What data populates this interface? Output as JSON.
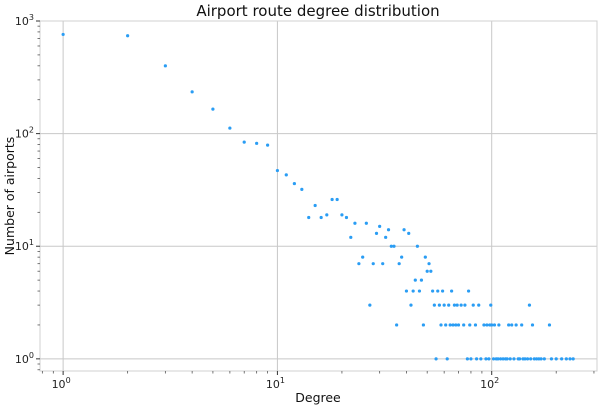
{
  "chart_data": {
    "type": "scatter",
    "title": "Airport route degree distribution",
    "xlabel": "Degree",
    "ylabel": "Number of airports",
    "xscale": "log",
    "yscale": "log",
    "xlim": [
      0.78,
      310
    ],
    "ylim": [
      0.78,
      1000
    ],
    "grid": true,
    "point_color": "#2a9df4",
    "x_ticks": [
      {
        "base": "10",
        "exp": "0",
        "value": 1
      },
      {
        "base": "10",
        "exp": "1",
        "value": 10
      },
      {
        "base": "10",
        "exp": "2",
        "value": 100
      }
    ],
    "y_ticks": [
      {
        "base": "10",
        "exp": "0",
        "value": 1
      },
      {
        "base": "10",
        "exp": "1",
        "value": 10
      },
      {
        "base": "10",
        "exp": "2",
        "value": 100
      },
      {
        "base": "10",
        "exp": "3",
        "value": 1000
      }
    ],
    "points": [
      [
        1,
        760
      ],
      [
        2,
        740
      ],
      [
        3,
        400
      ],
      [
        4,
        235
      ],
      [
        5,
        165
      ],
      [
        6,
        112
      ],
      [
        7,
        84
      ],
      [
        8,
        82
      ],
      [
        9,
        79
      ],
      [
        10,
        47
      ],
      [
        11,
        43
      ],
      [
        12,
        36
      ],
      [
        13,
        32
      ],
      [
        14,
        18
      ],
      [
        15,
        23
      ],
      [
        16,
        18
      ],
      [
        17,
        19
      ],
      [
        18,
        26
      ],
      [
        19,
        26
      ],
      [
        20,
        19
      ],
      [
        21,
        18
      ],
      [
        22,
        12
      ],
      [
        23,
        16
      ],
      [
        24,
        7
      ],
      [
        25,
        8
      ],
      [
        26,
        16
      ],
      [
        27,
        3
      ],
      [
        28,
        7
      ],
      [
        29,
        13
      ],
      [
        30,
        15
      ],
      [
        31,
        7
      ],
      [
        32,
        12
      ],
      [
        33,
        14
      ],
      [
        34,
        10
      ],
      [
        35,
        10
      ],
      [
        36,
        2
      ],
      [
        37,
        7
      ],
      [
        38,
        8
      ],
      [
        39,
        14
      ],
      [
        40,
        4
      ],
      [
        41,
        13
      ],
      [
        42,
        3
      ],
      [
        43,
        4
      ],
      [
        44,
        5
      ],
      [
        45,
        10
      ],
      [
        46,
        4
      ],
      [
        47,
        5
      ],
      [
        48,
        2
      ],
      [
        49,
        8
      ],
      [
        50,
        6
      ],
      [
        51,
        7
      ],
      [
        52,
        6
      ],
      [
        53,
        4
      ],
      [
        54,
        3
      ],
      [
        55,
        1
      ],
      [
        56,
        4
      ],
      [
        57,
        3
      ],
      [
        58,
        2
      ],
      [
        59,
        4
      ],
      [
        60,
        3
      ],
      [
        61,
        2
      ],
      [
        62,
        1
      ],
      [
        63,
        3
      ],
      [
        64,
        2
      ],
      [
        65,
        4
      ],
      [
        66,
        2
      ],
      [
        67,
        3
      ],
      [
        68,
        2
      ],
      [
        69,
        3
      ],
      [
        70,
        2
      ],
      [
        72,
        3
      ],
      [
        74,
        2
      ],
      [
        75,
        3
      ],
      [
        77,
        1
      ],
      [
        78,
        4
      ],
      [
        79,
        2
      ],
      [
        80,
        1
      ],
      [
        82,
        3
      ],
      [
        84,
        2
      ],
      [
        85,
        1
      ],
      [
        87,
        3
      ],
      [
        89,
        1
      ],
      [
        92,
        2
      ],
      [
        94,
        1
      ],
      [
        95,
        2
      ],
      [
        97,
        1
      ],
      [
        98,
        2
      ],
      [
        99,
        3
      ],
      [
        100,
        2
      ],
      [
        102,
        1
      ],
      [
        103,
        2
      ],
      [
        105,
        1
      ],
      [
        107,
        1
      ],
      [
        108,
        2
      ],
      [
        110,
        1
      ],
      [
        113,
        1
      ],
      [
        116,
        1
      ],
      [
        118,
        1
      ],
      [
        120,
        2
      ],
      [
        122,
        1
      ],
      [
        124,
        2
      ],
      [
        127,
        1
      ],
      [
        130,
        2
      ],
      [
        133,
        1
      ],
      [
        135,
        1
      ],
      [
        138,
        2
      ],
      [
        140,
        1
      ],
      [
        143,
        1
      ],
      [
        147,
        1
      ],
      [
        150,
        3
      ],
      [
        152,
        1
      ],
      [
        155,
        2
      ],
      [
        158,
        1
      ],
      [
        162,
        1
      ],
      [
        166,
        1
      ],
      [
        170,
        1
      ],
      [
        176,
        1
      ],
      [
        186,
        2
      ],
      [
        190,
        1
      ],
      [
        200,
        1
      ],
      [
        212,
        1
      ],
      [
        223,
        1
      ],
      [
        232,
        1
      ],
      [
        240,
        1
      ]
    ]
  }
}
